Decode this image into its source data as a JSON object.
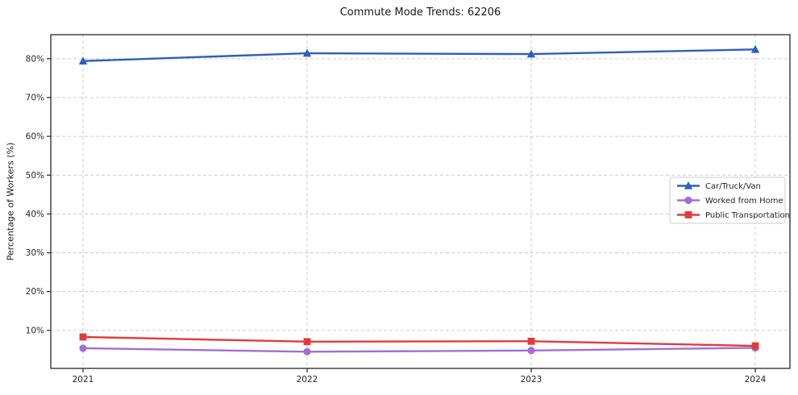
{
  "figure": {
    "title": "Commute Mode Trends: 62206"
  },
  "chart_data": {
    "type": "line",
    "title": "Commute Mode Trends: 62206",
    "xlabel": "",
    "ylabel": "Percentage of Workers (%)",
    "categories": [
      "2021",
      "2022",
      "2023",
      "2024"
    ],
    "series": [
      {
        "name": "Car/Truck/Van",
        "marker": "triangle",
        "color": "#2d5ec0",
        "values": [
          79.4,
          81.4,
          81.2,
          82.4
        ]
      },
      {
        "name": "Worked from Home",
        "marker": "circle",
        "color": "#9f6fd8",
        "values": [
          5.4,
          4.5,
          4.8,
          5.5
        ]
      },
      {
        "name": "Public Transportation",
        "marker": "square",
        "color": "#e23b3c",
        "values": [
          8.3,
          7.1,
          7.2,
          6.0
        ]
      }
    ],
    "y_ticks": [
      10,
      20,
      30,
      40,
      50,
      60,
      70,
      80
    ],
    "y_tick_labels": [
      "10%",
      "20%",
      "30%",
      "40%",
      "50%",
      "60%",
      "70%",
      "80%"
    ],
    "ylim": [
      0.2,
      86.2
    ],
    "grid": true,
    "grid_style": "dashed",
    "legend_position": "center right"
  },
  "colors": {
    "background": "#ffffff",
    "grid": "#cccccc",
    "frame": "#262626",
    "tick": "#262626",
    "text": "#262626",
    "legend_border": "#cccccc",
    "legend_background": "#ffffff"
  }
}
